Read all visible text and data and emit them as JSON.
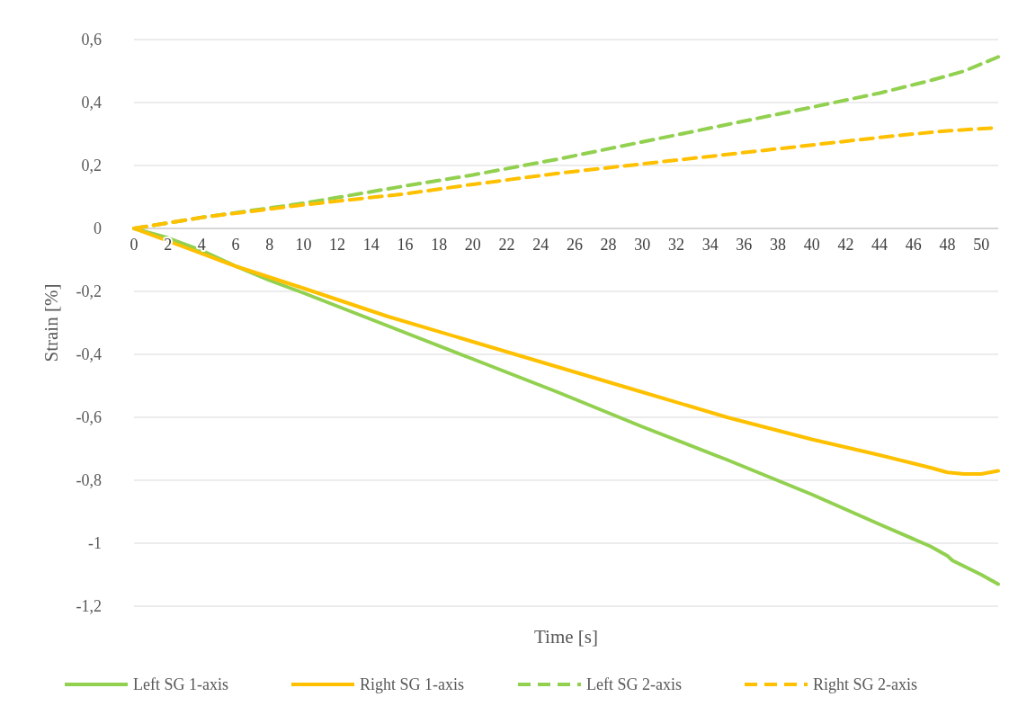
{
  "chart_data": {
    "type": "line",
    "xlabel": "Time [s]",
    "ylabel": "Strain [%]",
    "xlim": [
      0,
      51
    ],
    "xticks": [
      0,
      2,
      4,
      6,
      8,
      10,
      12,
      14,
      16,
      18,
      20,
      22,
      24,
      26,
      28,
      30,
      32,
      34,
      36,
      38,
      40,
      42,
      44,
      46,
      48,
      50
    ],
    "ylim": [
      -1.2,
      0.6
    ],
    "yticks": [
      {
        "value": -1.2,
        "label": "-1,2"
      },
      {
        "value": -1,
        "label": "-1"
      },
      {
        "value": -0.8,
        "label": "-0,8"
      },
      {
        "value": -0.6,
        "label": "-0,6"
      },
      {
        "value": -0.4,
        "label": "-0,4"
      },
      {
        "value": -0.2,
        "label": "-0,2"
      },
      0,
      {
        "value": 0.2,
        "label": "0,2"
      },
      {
        "value": 0.4,
        "label": "0,4"
      },
      {
        "value": 0.6,
        "label": "0,6"
      }
    ],
    "grid": "y",
    "legend": "bottom",
    "marker": "none",
    "series": [
      {
        "name": "Left SG 1-axis",
        "color": "#92d050",
        "line_style": "solid",
        "x": [
          0,
          2,
          4,
          6,
          8,
          10,
          15,
          20,
          25,
          30,
          35,
          40,
          44,
          47,
          48,
          48.3,
          50,
          51
        ],
        "values": [
          0,
          -0.03,
          -0.07,
          -0.12,
          -0.165,
          -0.205,
          -0.31,
          -0.415,
          -0.52,
          -0.63,
          -0.735,
          -0.845,
          -0.94,
          -1.01,
          -1.04,
          -1.055,
          -1.1,
          -1.13
        ]
      },
      {
        "name": "Right SG 1-axis",
        "color": "#ffc000",
        "line_style": "solid",
        "x": [
          0,
          2,
          4,
          6,
          10,
          15,
          20,
          25,
          30,
          35,
          40,
          44,
          47,
          48,
          49,
          50,
          51
        ],
        "values": [
          0,
          -0.04,
          -0.08,
          -0.12,
          -0.19,
          -0.28,
          -0.36,
          -0.44,
          -0.52,
          -0.6,
          -0.67,
          -0.72,
          -0.76,
          -0.775,
          -0.78,
          -0.78,
          -0.77
        ]
      },
      {
        "name": "Left SG 2-axis",
        "color": "#92d050",
        "line_style": "dashed",
        "x": [
          0,
          4,
          10,
          16,
          20,
          25,
          30,
          35,
          40,
          44,
          47,
          49,
          51
        ],
        "values": [
          0,
          0.035,
          0.08,
          0.135,
          0.17,
          0.22,
          0.275,
          0.33,
          0.385,
          0.43,
          0.47,
          0.5,
          0.545
        ]
      },
      {
        "name": "Right SG 2-axis",
        "color": "#ffc000",
        "line_style": "dashed",
        "x": [
          0,
          4,
          10,
          16,
          20,
          25,
          30,
          35,
          40,
          45,
          48,
          51
        ],
        "values": [
          0,
          0.035,
          0.075,
          0.11,
          0.14,
          0.175,
          0.205,
          0.235,
          0.265,
          0.295,
          0.31,
          0.32
        ]
      }
    ]
  }
}
